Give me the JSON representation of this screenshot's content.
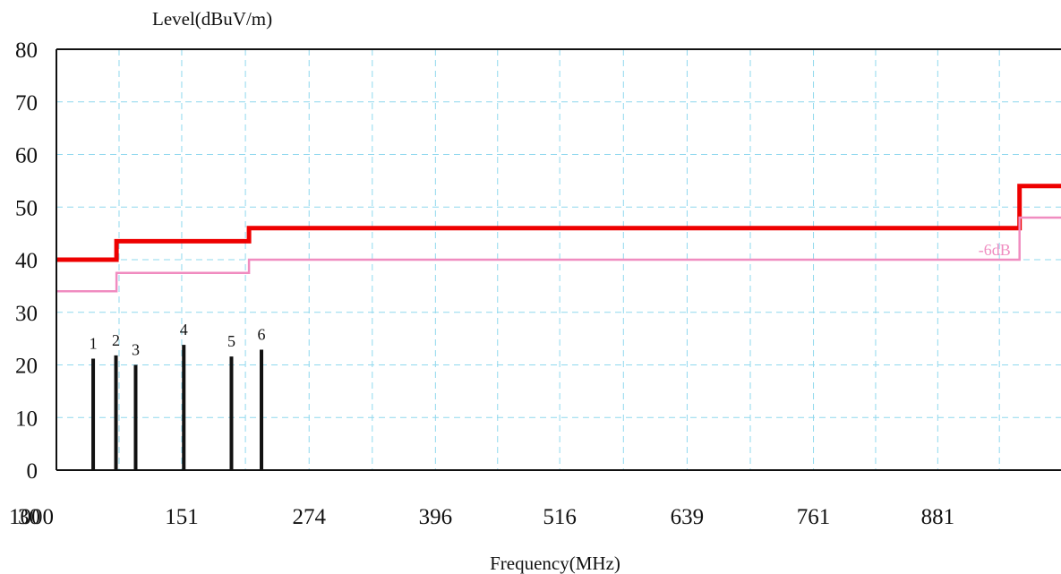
{
  "chart_data": {
    "type": "line",
    "ylabel": "Level(dBuV/m)",
    "xlabel": "Frequency(MHz)",
    "ylim": [
      0,
      80
    ],
    "y_ticks": [
      "0",
      "10",
      "20",
      "30",
      "40",
      "50",
      "60",
      "70",
      "80"
    ],
    "x_ticks": [
      {
        "label": "30",
        "v": 30
      },
      {
        "label": "151",
        "v": 151
      },
      {
        "label": "274",
        "v": 274
      },
      {
        "label": "396",
        "v": 396
      },
      {
        "label": "516",
        "v": 516
      },
      {
        "label": "639",
        "v": 639
      },
      {
        "label": "761",
        "v": 761
      },
      {
        "label": "881",
        "v": 881
      },
      {
        "label": "1000",
        "v": 1000
      }
    ],
    "xlim": [
      30,
      1000
    ],
    "grid": true,
    "series": [
      {
        "color": "#ee0000",
        "points": [
          [
            30,
            40
          ],
          [
            88,
            40
          ],
          [
            88,
            43.5
          ],
          [
            216,
            43.5
          ],
          [
            216,
            46
          ],
          [
            960,
            46
          ],
          [
            960,
            54
          ],
          [
            1000,
            54
          ]
        ]
      },
      {
        "color": "#f08cc0",
        "label": "-6dB",
        "points": [
          [
            30,
            34
          ],
          [
            88,
            34
          ],
          [
            88,
            37.5
          ],
          [
            216,
            37.5
          ],
          [
            216,
            40
          ],
          [
            960,
            40
          ],
          [
            960,
            48
          ],
          [
            1000,
            48
          ]
        ]
      }
    ],
    "markers": {
      "color": "#111111",
      "items": [
        {
          "label": "1",
          "x": 65.5,
          "y": 21.2
        },
        {
          "label": "2",
          "x": 87.5,
          "y": 21.8
        },
        {
          "label": "3",
          "x": 106.5,
          "y": 20.0
        },
        {
          "label": "4",
          "x": 153.0,
          "y": 23.8
        },
        {
          "label": "5",
          "x": 199.0,
          "y": 21.6
        },
        {
          "label": "6",
          "x": 228.0,
          "y": 22.9
        }
      ]
    }
  }
}
